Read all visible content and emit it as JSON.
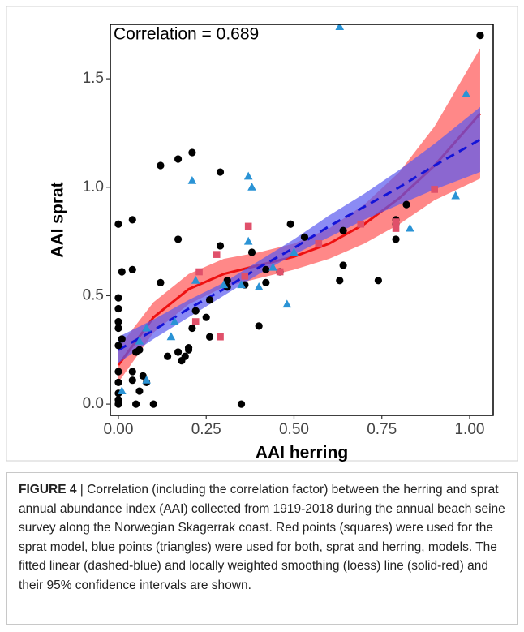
{
  "chart_data": {
    "type": "scatter",
    "annotation": "Correlation = 0.689",
    "x_label": "AAI herring",
    "y_label": "AAI sprat",
    "xlim": [
      -0.023,
      1.067
    ],
    "ylim": [
      -0.052,
      1.751
    ],
    "xticks": [
      {
        "value": 0,
        "label": "0.00"
      },
      {
        "value": 0.25,
        "label": "0.25"
      },
      {
        "value": 0.5,
        "label": "0.50"
      },
      {
        "value": 0.75,
        "label": "0.75"
      },
      {
        "value": 1,
        "label": "1.00"
      }
    ],
    "yticks": [
      {
        "value": 0,
        "label": "0.0"
      },
      {
        "value": 0.5,
        "label": "0.5"
      },
      {
        "value": 1,
        "label": "1.0"
      },
      {
        "value": 1.5,
        "label": "1.5"
      }
    ],
    "series": [
      {
        "color": "#000000",
        "marker": "circle",
        "x": [
          0,
          0,
          0,
          0,
          0,
          0,
          0,
          0,
          0,
          0,
          0,
          0.01,
          0.01,
          0.04,
          0.04,
          0.04,
          0.04,
          0.05,
          0.05,
          0.06,
          0.06,
          0.07,
          0.08,
          0.1,
          0.12,
          0.12,
          0.14,
          0.17,
          0.17,
          0.17,
          0.18,
          0.19,
          0.2,
          0.2,
          0.21,
          0.21,
          0.22,
          0.25,
          0.26,
          0.26,
          0.29,
          0.29,
          0.31,
          0.31,
          0.35,
          0.36,
          0.38,
          0.4,
          0.42,
          0.42,
          0.46,
          0.49,
          0.53,
          0.63,
          0.64,
          0.64,
          0.74,
          0.79,
          0.79,
          0.79,
          0.82,
          1.03
        ],
        "values": [
          0,
          0.02,
          0.05,
          0.1,
          0.15,
          0.27,
          0.35,
          0.38,
          0.44,
          0.49,
          0.83,
          0.3,
          0.61,
          0.11,
          0.15,
          0.85,
          0.62,
          0.24,
          0,
          0.06,
          0.25,
          0.13,
          0.1,
          0,
          1.1,
          0.56,
          0.22,
          1.13,
          0.76,
          0.24,
          0.2,
          0.22,
          0.26,
          0.25,
          1.16,
          0.35,
          0.43,
          0.4,
          0.31,
          0.48,
          1.07,
          0.73,
          0.57,
          0.54,
          0,
          0.55,
          0.7,
          0.36,
          0.62,
          0.56,
          0.61,
          0.83,
          0.77,
          0.57,
          0.64,
          0.8,
          0.57,
          0.76,
          0.83,
          0.85,
          0.92,
          1.7
        ]
      },
      {
        "color": "#e0506a",
        "marker": "square",
        "x": [
          0.23,
          0.22,
          0.28,
          0.29,
          0.37,
          0.36,
          0.46,
          0.57,
          0.69,
          0.79,
          0.79,
          0.9
        ],
        "values": [
          0.61,
          0.38,
          0.69,
          0.31,
          0.82,
          0.59,
          0.61,
          0.74,
          0.83,
          0.81,
          0.84,
          0.99
        ]
      },
      {
        "color": "#2a93d5",
        "marker": "triangle",
        "x": [
          0.01,
          0.06,
          0.08,
          0.08,
          0.15,
          0.16,
          0.21,
          0.22,
          0.3,
          0.37,
          0.38,
          0.37,
          0.35,
          0.4,
          0.44,
          0.48,
          0.5,
          0.63,
          0.83,
          0.96,
          0.99
        ],
        "values": [
          0.06,
          0.29,
          0.11,
          0.35,
          0.31,
          0.38,
          1.03,
          0.57,
          0.55,
          1.05,
          1.0,
          0.75,
          0.55,
          0.54,
          0.63,
          0.46,
          0.7,
          1.74,
          0.81,
          0.96,
          1.43
        ]
      }
    ],
    "fits": [
      {
        "method": "loess",
        "color": "#ee1111",
        "band_color": "#ff8282",
        "dash": false,
        "x": [
          0,
          0.1,
          0.2,
          0.3,
          0.4,
          0.5,
          0.6,
          0.7,
          0.8,
          0.9,
          1.03
        ],
        "values": [
          0.18,
          0.4,
          0.53,
          0.6,
          0.64,
          0.68,
          0.74,
          0.83,
          0.95,
          1.1,
          1.34
        ],
        "lower": [
          0.1,
          0.33,
          0.46,
          0.54,
          0.58,
          0.62,
          0.67,
          0.74,
          0.83,
          0.94,
          1.04
        ],
        "upper": [
          0.26,
          0.47,
          0.6,
          0.67,
          0.7,
          0.74,
          0.81,
          0.92,
          1.07,
          1.28,
          1.64
        ]
      },
      {
        "method": "linear",
        "color": "#1414d8",
        "band_color": "#5a5af0",
        "dash": true,
        "x": [
          0,
          0.1,
          0.2,
          0.3,
          0.4,
          0.5,
          0.6,
          0.7,
          0.8,
          0.9,
          1.03
        ],
        "values": [
          0.25,
          0.34,
          0.44,
          0.53,
          0.63,
          0.72,
          0.82,
          0.91,
          1.0,
          1.1,
          1.22
        ],
        "lower": [
          0.19,
          0.3,
          0.4,
          0.5,
          0.6,
          0.69,
          0.77,
          0.85,
          0.92,
          0.99,
          1.07
        ],
        "upper": [
          0.31,
          0.39,
          0.48,
          0.56,
          0.66,
          0.76,
          0.87,
          0.97,
          1.08,
          1.2,
          1.37
        ]
      }
    ]
  },
  "caption": {
    "label": "FIGURE 4",
    "text": "| Correlation (including the correlation factor) between the herring and sprat annual abundance index (AAI) collected from 1919-2018 during the annual beach seine survey along the Norwegian Skagerrak coast. Red points (squares) were used for the sprat model, blue points (triangles) were used for both, sprat and herring, models. The fitted linear (dashed-blue) and locally weighted smoothing (loess) line (solid-red) and their 95% confidence intervals are shown."
  }
}
